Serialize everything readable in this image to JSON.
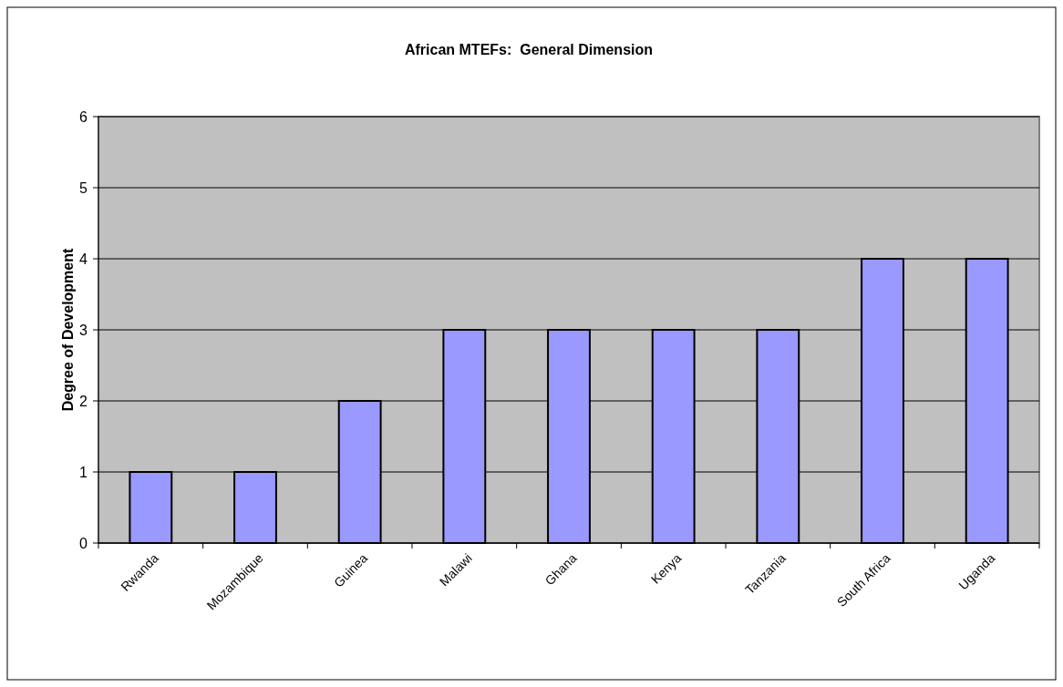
{
  "chart_data": {
    "type": "bar",
    "title": "African MTEFs:  General Dimension",
    "ylabel": "Degree of Development",
    "categories": [
      "Rwanda",
      "Mozambique",
      "Guinea",
      "Malawi",
      "Ghana",
      "Kenya",
      "Tanzania",
      "South Africa",
      "Uganda"
    ],
    "values": [
      1,
      1,
      2,
      3,
      3,
      3,
      3,
      4,
      4
    ],
    "color": "#9999ff",
    "ylim": [
      0,
      6
    ],
    "yticks": [
      0,
      1,
      2,
      3,
      4,
      5,
      6
    ],
    "grid": "y"
  }
}
